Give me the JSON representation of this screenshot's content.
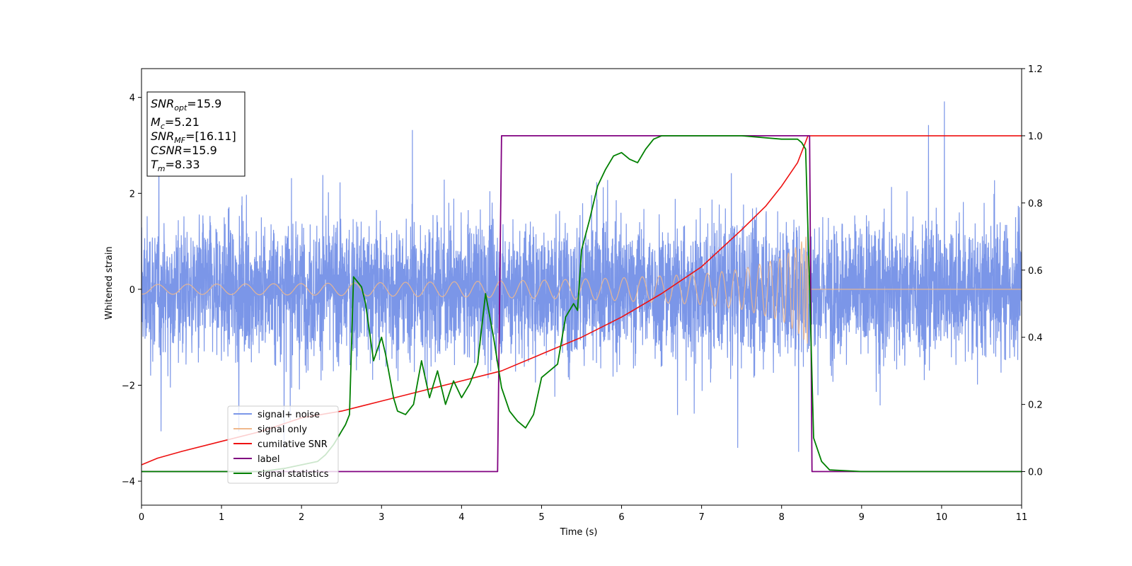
{
  "chart_data": {
    "type": "line",
    "title": "",
    "xlabel": "Time (s)",
    "ylabel": "Whitened strain",
    "xlim": [
      0,
      11
    ],
    "ylim": [
      -4.5,
      4.6
    ],
    "ylim_right": [
      -0.1,
      1.2
    ],
    "xticks": [
      0,
      1,
      2,
      3,
      4,
      5,
      6,
      7,
      8,
      9,
      10,
      11
    ],
    "yticks": [
      -4,
      -2,
      0,
      2,
      4
    ],
    "yticks_right": [
      0.0,
      0.2,
      0.4,
      0.6,
      0.8,
      1.0,
      1.2
    ],
    "grid": false,
    "legend_position": "lower-left",
    "annotation": {
      "snr_opt": {
        "base": "SNR",
        "sub": "opt",
        "value": "=15.9"
      },
      "mc": {
        "base": "M",
        "sub": "c",
        "value": "=5.21"
      },
      "snr_mf": {
        "base": "SNR",
        "sub": "MF",
        "value": "=[16.11]"
      },
      "csnr": {
        "base": "CSNR",
        "value": "=15.9"
      },
      "tm": {
        "base": "T",
        "sub": "m",
        "value": "=8.33"
      }
    },
    "series": [
      {
        "name": "signal+ noise",
        "color": "#7b96e8",
        "axis": "left",
        "description": "noise band",
        "band_y": [
          -2.2,
          2.2
        ]
      },
      {
        "name": "signal only",
        "color": "#f0b88c",
        "axis": "left",
        "chirp_merger_time": 8.33,
        "envelope_x": [
          0,
          1,
          2,
          3,
          4,
          5,
          6,
          7,
          7.5,
          8,
          8.2,
          8.33
        ],
        "envelope_y": [
          0.1,
          0.11,
          0.12,
          0.14,
          0.16,
          0.19,
          0.24,
          0.32,
          0.42,
          0.65,
          0.9,
          1.15
        ]
      },
      {
        "name": "cumilative SNR",
        "color": "#ee1111",
        "axis": "right",
        "x": [
          0,
          0.2,
          0.5,
          1,
          1.5,
          2,
          2.5,
          3,
          3.5,
          4,
          4.5,
          5,
          5.5,
          6,
          6.5,
          7,
          7.5,
          7.8,
          8,
          8.2,
          8.33,
          8.35,
          11
        ],
        "y": [
          0.02,
          0.04,
          0.06,
          0.09,
          0.12,
          0.16,
          0.18,
          0.21,
          0.24,
          0.27,
          0.3,
          0.35,
          0.4,
          0.46,
          0.53,
          0.61,
          0.72,
          0.79,
          0.85,
          0.92,
          1.0,
          1.0,
          1.0
        ]
      },
      {
        "name": "label",
        "color": "#800080",
        "axis": "right",
        "x": [
          0,
          4.45,
          4.5,
          8.35,
          8.38,
          11
        ],
        "y": [
          0,
          0,
          1,
          1,
          0,
          0
        ]
      },
      {
        "name": "signal statistics",
        "color": "#008000",
        "axis": "right",
        "x": [
          0,
          0.5,
          1,
          1.5,
          1.8,
          2,
          2.2,
          2.3,
          2.4,
          2.45,
          2.5,
          2.55,
          2.6,
          2.65,
          2.75,
          2.8,
          2.9,
          3.0,
          3.05,
          3.15,
          3.2,
          3.3,
          3.4,
          3.5,
          3.6,
          3.7,
          3.8,
          3.9,
          4.0,
          4.1,
          4.2,
          4.3,
          4.4,
          4.5,
          4.6,
          4.7,
          4.8,
          4.9,
          5.0,
          5.1,
          5.2,
          5.3,
          5.4,
          5.45,
          5.5,
          5.6,
          5.7,
          5.8,
          5.9,
          6.0,
          6.1,
          6.2,
          6.3,
          6.4,
          6.5,
          6.6,
          6.7,
          6.8,
          7.0,
          7.5,
          8.0,
          8.2,
          8.25,
          8.3,
          8.35,
          8.4,
          8.5,
          8.6,
          9,
          10,
          11
        ],
        "y": [
          0.0,
          0.0,
          0.0,
          0.0,
          0.01,
          0.02,
          0.03,
          0.05,
          0.08,
          0.1,
          0.12,
          0.14,
          0.17,
          0.58,
          0.55,
          0.5,
          0.33,
          0.4,
          0.35,
          0.22,
          0.18,
          0.17,
          0.2,
          0.33,
          0.22,
          0.3,
          0.2,
          0.27,
          0.22,
          0.26,
          0.32,
          0.53,
          0.4,
          0.25,
          0.18,
          0.15,
          0.13,
          0.17,
          0.28,
          0.3,
          0.32,
          0.46,
          0.5,
          0.48,
          0.66,
          0.75,
          0.85,
          0.9,
          0.94,
          0.95,
          0.93,
          0.92,
          0.96,
          0.99,
          1.0,
          1.0,
          1.0,
          1.0,
          1.0,
          1.0,
          0.99,
          0.99,
          0.98,
          0.96,
          0.55,
          0.1,
          0.03,
          0.005,
          0.0,
          0.0,
          0.0
        ]
      }
    ]
  }
}
